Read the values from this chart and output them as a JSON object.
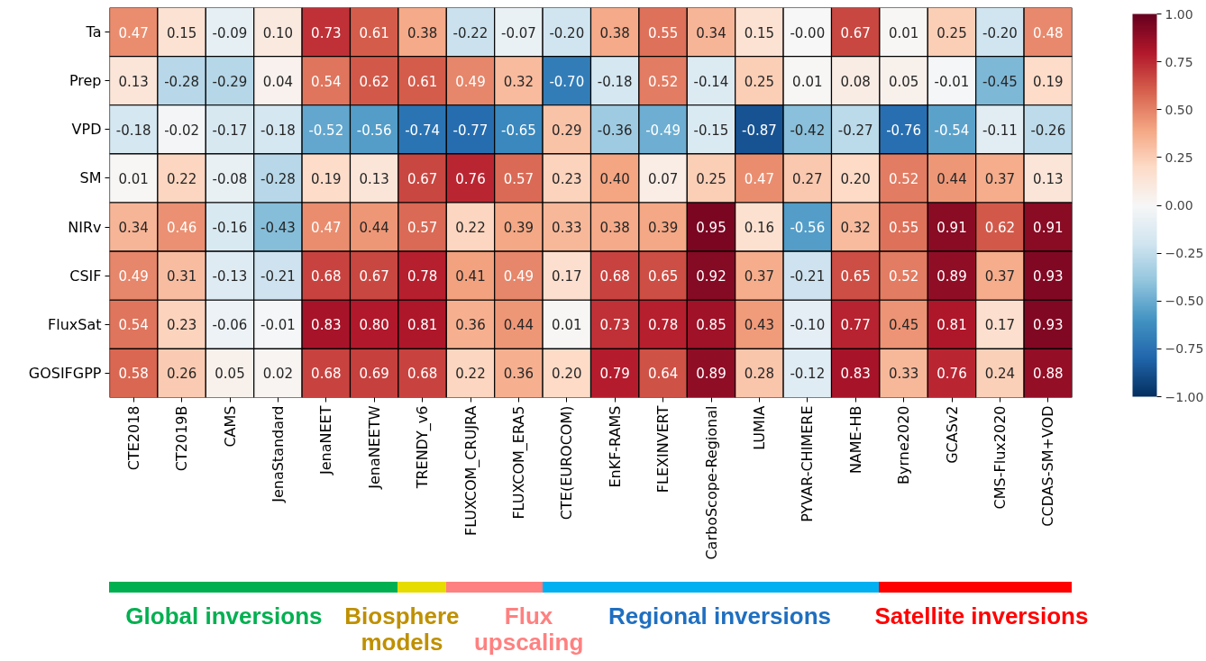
{
  "chart_data": {
    "type": "heatmap",
    "categories": [
      "CTE2018",
      "CT2019B",
      "CAMS",
      "JenaStandard",
      "JenaNEET",
      "JenaNEETW",
      "TRENDY_v6",
      "FLUXCOM_CRUJRA",
      "FLUXCOM_ERA5",
      "CTE(EUROCOM)",
      "EnKF-RAMS",
      "FLEXINVERT",
      "CarboScope-Regional",
      "LUMIA",
      "PYVAR-CHIMERE",
      "NAME-HB",
      "Byrne2020",
      "GCASv2",
      "CMS-Flux2020",
      "CCDAS-SM+VOD"
    ],
    "y_categories": [
      "Ta",
      "Prep",
      "VPD",
      "SM",
      "NIRv",
      "CSIF",
      "FluxSat",
      "GOSIFGPP"
    ],
    "cells": [
      [
        0.47,
        0.15,
        -0.09,
        0.1,
        0.73,
        0.61,
        0.38,
        -0.22,
        -0.07,
        -0.2,
        0.38,
        0.55,
        0.34,
        0.15,
        0.0,
        0.67,
        0.01,
        0.25,
        -0.2,
        0.48
      ],
      [
        0.13,
        -0.28,
        -0.29,
        0.04,
        0.54,
        0.62,
        0.61,
        0.49,
        0.32,
        -0.7,
        -0.18,
        0.52,
        -0.14,
        0.25,
        0.01,
        0.08,
        0.05,
        -0.01,
        -0.45,
        0.19
      ],
      [
        -0.18,
        -0.02,
        -0.17,
        -0.18,
        -0.52,
        -0.56,
        -0.74,
        -0.77,
        -0.65,
        0.29,
        -0.36,
        -0.49,
        -0.15,
        -0.87,
        -0.42,
        -0.27,
        -0.76,
        -0.54,
        -0.11,
        -0.26
      ],
      [
        0.01,
        0.22,
        -0.08,
        -0.28,
        0.19,
        0.13,
        0.67,
        0.76,
        0.57,
        0.23,
        0.4,
        0.07,
        0.25,
        0.47,
        0.27,
        0.2,
        0.52,
        0.44,
        0.37,
        0.13
      ],
      [
        0.34,
        0.46,
        -0.16,
        -0.43,
        0.47,
        0.44,
        0.57,
        0.22,
        0.39,
        0.33,
        0.38,
        0.39,
        0.95,
        0.16,
        -0.56,
        0.32,
        0.55,
        0.91,
        0.62,
        0.91
      ],
      [
        0.49,
        0.31,
        -0.13,
        -0.21,
        0.68,
        0.67,
        0.78,
        0.41,
        0.49,
        0.17,
        0.68,
        0.65,
        0.92,
        0.37,
        -0.21,
        0.65,
        0.52,
        0.89,
        0.37,
        0.93
      ],
      [
        0.54,
        0.23,
        -0.06,
        -0.01,
        0.83,
        0.8,
        0.81,
        0.36,
        0.44,
        0.01,
        0.73,
        0.78,
        0.85,
        0.43,
        -0.1,
        0.77,
        0.45,
        0.81,
        0.17,
        0.93
      ],
      [
        0.58,
        0.26,
        0.05,
        0.02,
        0.68,
        0.69,
        0.68,
        0.22,
        0.36,
        0.2,
        0.79,
        0.64,
        0.89,
        0.28,
        -0.12,
        0.83,
        0.33,
        0.76,
        0.24,
        0.88
      ]
    ],
    "cell_labels": [
      [
        "0.47",
        "0.15",
        "-0.09",
        "0.10",
        "0.73",
        "0.61",
        "0.38",
        "-0.22",
        "-0.07",
        "-0.20",
        "0.38",
        "0.55",
        "0.34",
        "0.15",
        "-0.00",
        "0.67",
        "0.01",
        "0.25",
        "-0.20",
        "0.48"
      ],
      [
        "0.13",
        "-0.28",
        "-0.29",
        "0.04",
        "0.54",
        "0.62",
        "0.61",
        "0.49",
        "0.32",
        "-0.70",
        "-0.18",
        "0.52",
        "-0.14",
        "0.25",
        "0.01",
        "0.08",
        "0.05",
        "-0.01",
        "-0.45",
        "0.19"
      ],
      [
        "-0.18",
        "-0.02",
        "-0.17",
        "-0.18",
        "-0.52",
        "-0.56",
        "-0.74",
        "-0.77",
        "-0.65",
        "0.29",
        "-0.36",
        "-0.49",
        "-0.15",
        "-0.87",
        "-0.42",
        "-0.27",
        "-0.76",
        "-0.54",
        "-0.11",
        "-0.26"
      ],
      [
        "0.01",
        "0.22",
        "-0.08",
        "-0.28",
        "0.19",
        "0.13",
        "0.67",
        "0.76",
        "0.57",
        "0.23",
        "0.40",
        "0.07",
        "0.25",
        "0.47",
        "0.27",
        "0.20",
        "0.52",
        "0.44",
        "0.37",
        "0.13"
      ],
      [
        "0.34",
        "0.46",
        "-0.16",
        "-0.43",
        "0.47",
        "0.44",
        "0.57",
        "0.22",
        "0.39",
        "0.33",
        "0.38",
        "0.39",
        "0.95",
        "0.16",
        "-0.56",
        "0.32",
        "0.55",
        "0.91",
        "0.62",
        "0.91"
      ],
      [
        "0.49",
        "0.31",
        "-0.13",
        "-0.21",
        "0.68",
        "0.67",
        "0.78",
        "0.41",
        "0.49",
        "0.17",
        "0.68",
        "0.65",
        "0.92",
        "0.37",
        "-0.21",
        "0.65",
        "0.52",
        "0.89",
        "0.37",
        "0.93"
      ],
      [
        "0.54",
        "0.23",
        "-0.06",
        "-0.01",
        "0.83",
        "0.80",
        "0.81",
        "0.36",
        "0.44",
        "0.01",
        "0.73",
        "0.78",
        "0.85",
        "0.43",
        "-0.10",
        "0.77",
        "0.45",
        "0.81",
        "0.17",
        "0.93"
      ],
      [
        "0.58",
        "0.26",
        "0.05",
        "0.02",
        "0.68",
        "0.69",
        "0.68",
        "0.22",
        "0.36",
        "0.20",
        "0.79",
        "0.64",
        "0.89",
        "0.28",
        "-0.12",
        "0.83",
        "0.33",
        "0.76",
        "0.24",
        "0.88"
      ]
    ],
    "clim": [
      -1,
      1
    ],
    "cticks": [
      {
        "value": -1,
        "label": "−1.00"
      },
      {
        "value": -0.75,
        "label": "−0.75"
      },
      {
        "value": -0.5,
        "label": "−0.50"
      },
      {
        "value": -0.25,
        "label": "−0.25"
      },
      {
        "value": 0,
        "label": "0.00"
      },
      {
        "value": 0.25,
        "label": "0.25"
      },
      {
        "value": 0.5,
        "label": "0.50"
      },
      {
        "value": 0.75,
        "label": "0.75"
      },
      {
        "value": 1,
        "label": "1.00"
      }
    ],
    "annotations": [
      "Global inversions",
      "Biosphere\nmodels",
      "Flux\nupscaling",
      "Regional inversions",
      "Satellite inversions"
    ]
  }
}
